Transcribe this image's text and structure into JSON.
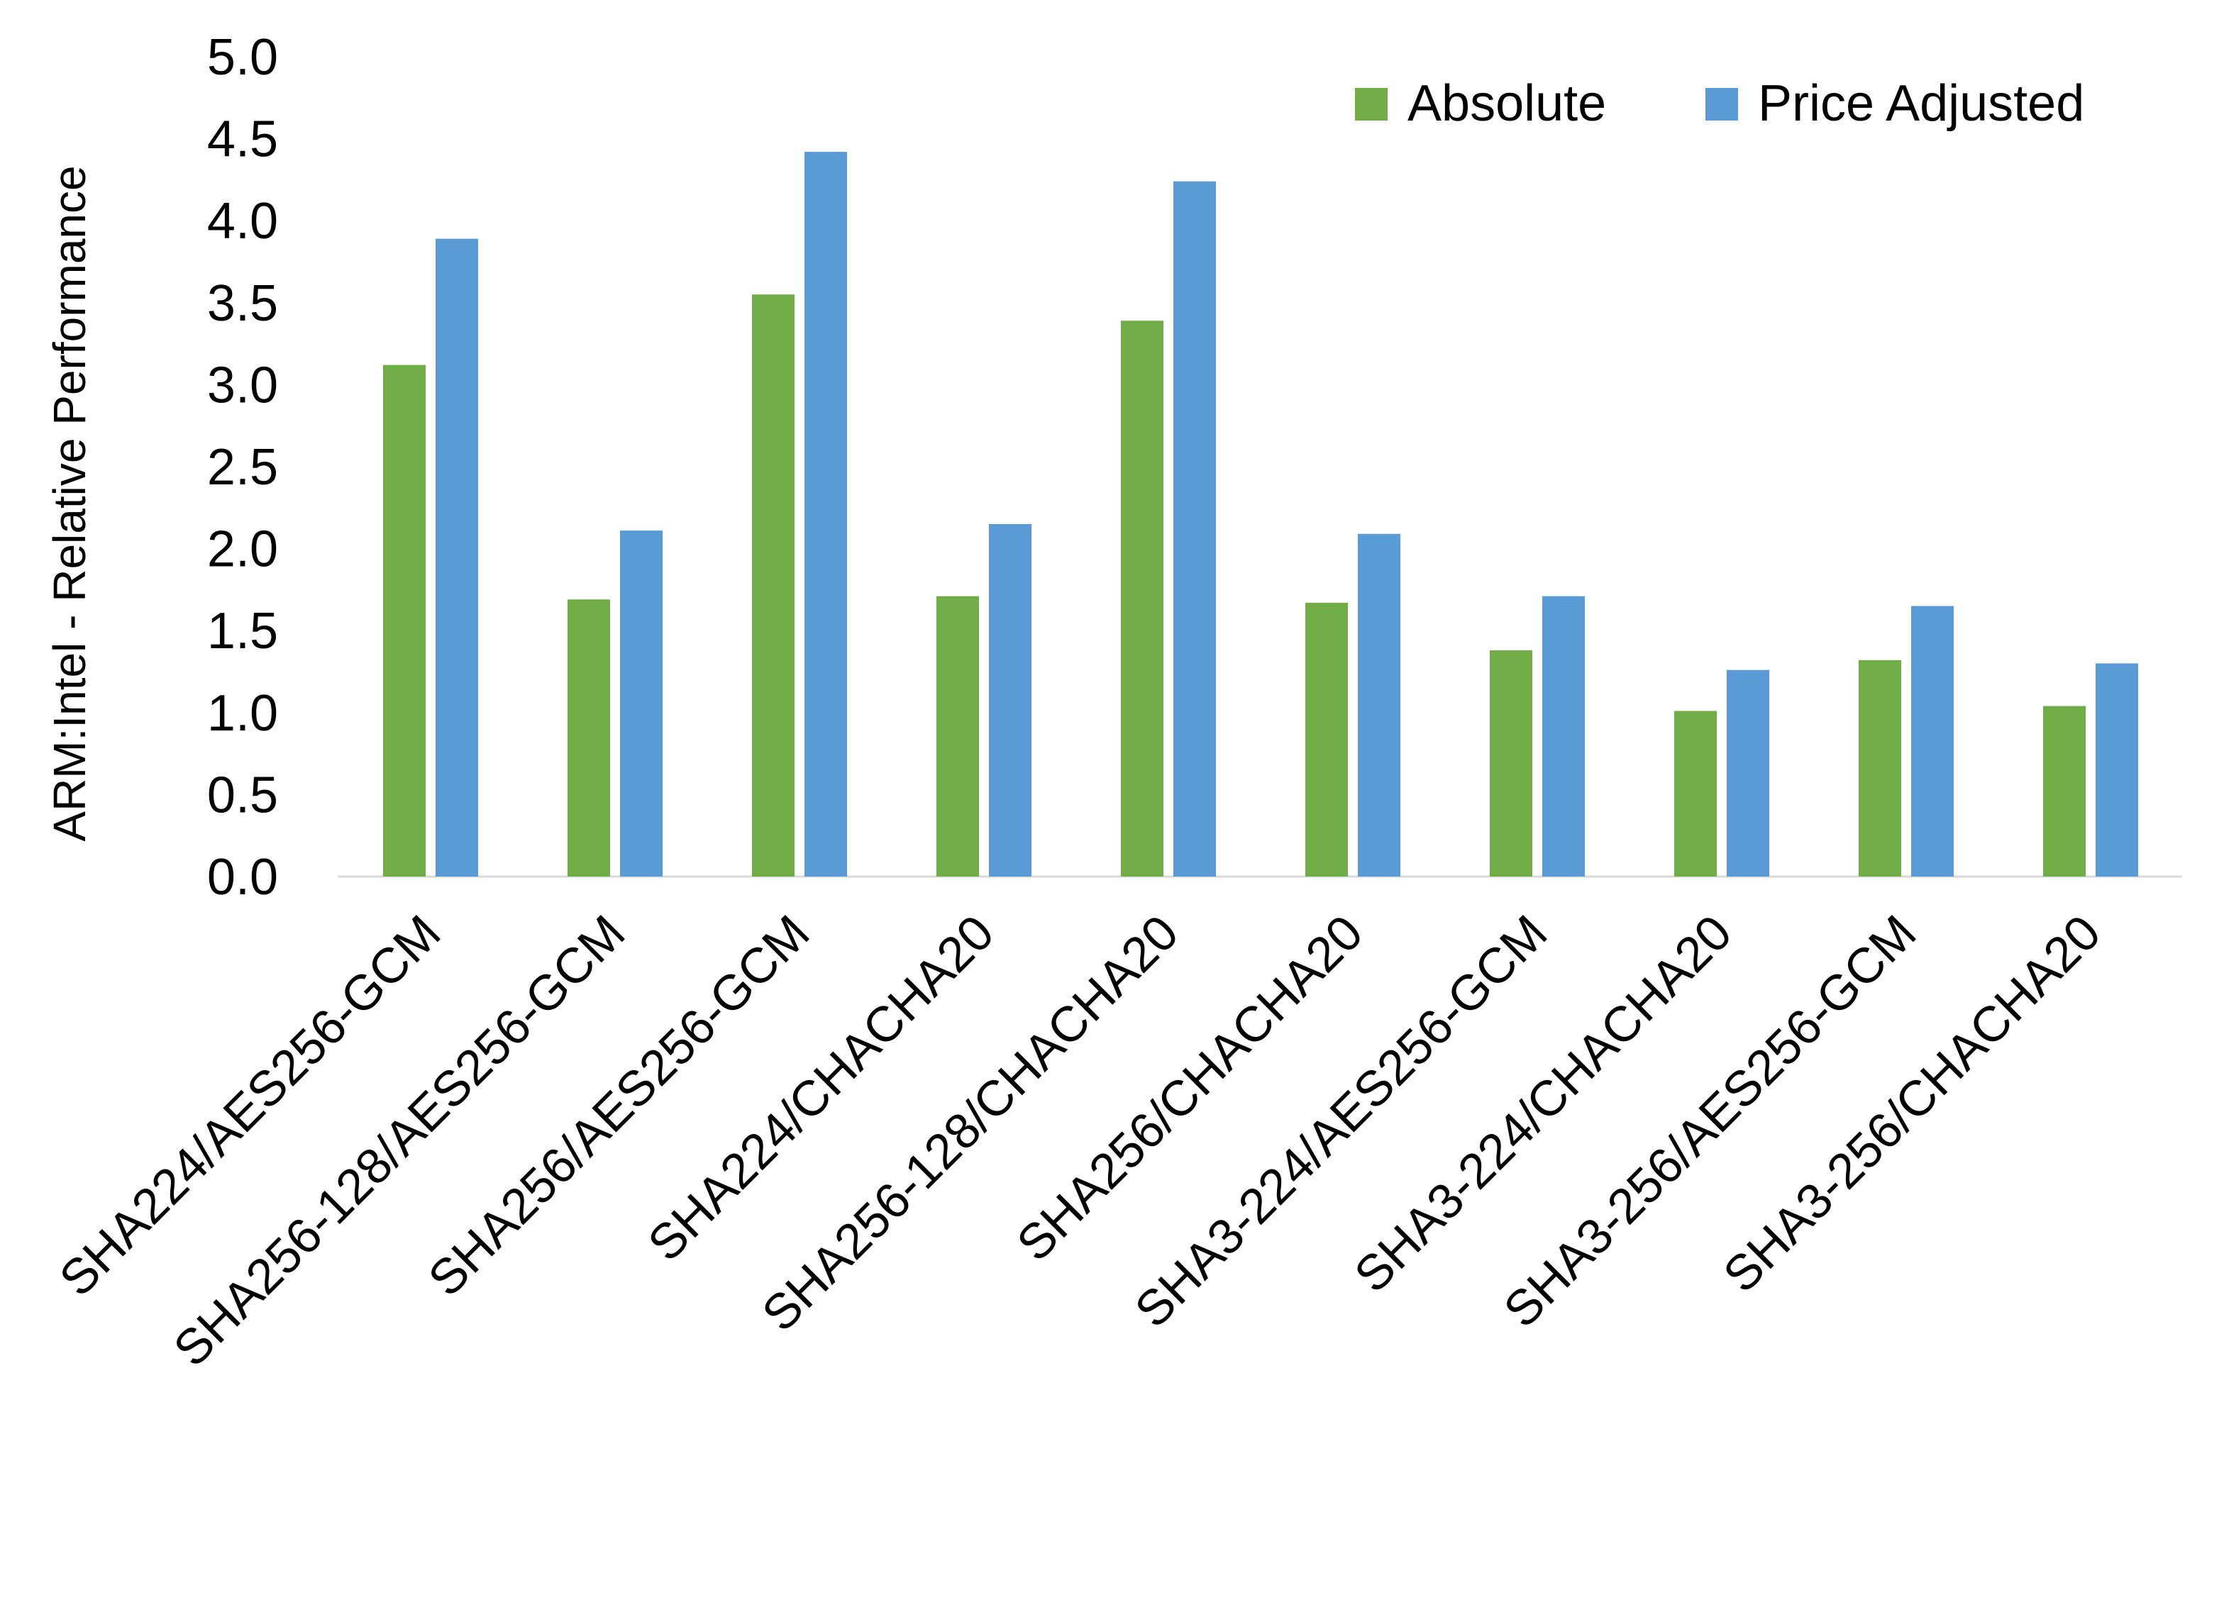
{
  "chart_data": {
    "type": "bar",
    "title": "",
    "xlabel": "",
    "ylabel": "ARM:Intel - Relative Performance",
    "ylim": [
      0,
      5.0
    ],
    "yticks": [
      "0.0",
      "0.5",
      "1.0",
      "1.5",
      "2.0",
      "2.5",
      "3.0",
      "3.5",
      "4.0",
      "4.5",
      "5.0"
    ],
    "grid": false,
    "legend_position": "top-right",
    "categories": [
      "SHA224/AES256-GCM",
      "SHA256-128/AES256-GCM",
      "SHA256/AES256-GCM",
      "SHA224/CHACHA20",
      "SHA256-128/CHACHA20",
      "SHA256/CHACHA20",
      "SHA3-224/AES256-GCM",
      "SHA3-224/CHACHA20",
      "SHA3-256/AES256-GCM",
      "SHA3-256/CHACHA20"
    ],
    "series": [
      {
        "name": "Absolute",
        "color": "#70AD47",
        "values": [
          3.12,
          1.69,
          3.55,
          1.71,
          3.39,
          1.67,
          1.38,
          1.01,
          1.32,
          1.04
        ]
      },
      {
        "name": "Price Adjusted",
        "color": "#5B9BD5",
        "values": [
          3.89,
          2.11,
          4.42,
          2.15,
          4.24,
          2.09,
          1.71,
          1.26,
          1.65,
          1.3
        ]
      }
    ]
  }
}
